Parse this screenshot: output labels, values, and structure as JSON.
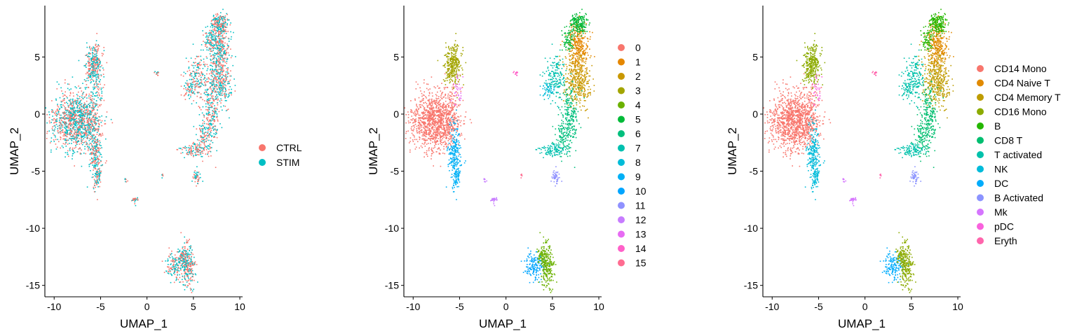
{
  "chart_data": [
    {
      "type": "scatter",
      "xlabel": "UMAP_1",
      "ylabel": "UMAP_2",
      "xlim": [
        -11,
        10.3
      ],
      "ylim": [
        -16,
        9.5
      ],
      "xticks": [
        -10,
        -5,
        0,
        5,
        10
      ],
      "yticks": [
        -15,
        -10,
        -5,
        0,
        5
      ],
      "xtick_labels": [
        "-10",
        "-5",
        "0",
        "5",
        "10"
      ],
      "ytick_labels": [
        "-15",
        "-10",
        "-5",
        "0",
        "5"
      ],
      "grid": false,
      "legend_placement": "right",
      "color_mode": "stim",
      "legend": [
        {
          "label": "CTRL",
          "color": "#F8766D"
        },
        {
          "label": "STIM",
          "color": "#00BFC4"
        }
      ]
    },
    {
      "type": "scatter",
      "xlabel": "UMAP_1",
      "ylabel": "UMAP_2",
      "xlim": [
        -11,
        10.3
      ],
      "ylim": [
        -16,
        9.5
      ],
      "xticks": [
        -10,
        -5,
        0,
        5,
        10
      ],
      "yticks": [
        -15,
        -10,
        -5,
        0,
        5
      ],
      "xtick_labels": [
        "-10",
        "-5",
        "0",
        "5",
        "10"
      ],
      "ytick_labels": [
        "-15",
        "-10",
        "-5",
        "0",
        "5"
      ],
      "grid": false,
      "legend_placement": "right",
      "color_mode": "cluster",
      "legend": [
        {
          "label": "0",
          "color": "#F8766D"
        },
        {
          "label": "1",
          "color": "#E58700"
        },
        {
          "label": "2",
          "color": "#C99800"
        },
        {
          "label": "3",
          "color": "#A3A500"
        },
        {
          "label": "4",
          "color": "#6BB100"
        },
        {
          "label": "5",
          "color": "#00BA38"
        },
        {
          "label": "6",
          "color": "#00BF7D"
        },
        {
          "label": "7",
          "color": "#00C0AF"
        },
        {
          "label": "8",
          "color": "#00BCD8"
        },
        {
          "label": "9",
          "color": "#00B0F6"
        },
        {
          "label": "10",
          "color": "#00A5FF"
        },
        {
          "label": "11",
          "color": "#8F91FF"
        },
        {
          "label": "12",
          "color": "#C77CFF"
        },
        {
          "label": "13",
          "color": "#E76BF3"
        },
        {
          "label": "14",
          "color": "#FF61C9"
        },
        {
          "label": "15",
          "color": "#FF6C91"
        }
      ]
    },
    {
      "type": "scatter",
      "xlabel": "UMAP_1",
      "ylabel": "UMAP_2",
      "xlim": [
        -11,
        10.3
      ],
      "ylim": [
        -16,
        9.5
      ],
      "xticks": [
        -10,
        -5,
        0,
        5,
        10
      ],
      "yticks": [
        -15,
        -10,
        -5,
        0,
        5
      ],
      "xtick_labels": [
        "-10",
        "-5",
        "0",
        "5",
        "10"
      ],
      "ytick_labels": [
        "-15",
        "-10",
        "-5",
        "0",
        "5"
      ],
      "grid": false,
      "legend_placement": "right",
      "color_mode": "celltype",
      "legend": [
        {
          "label": "CD14 Mono",
          "color": "#F8766D"
        },
        {
          "label": "CD4 Naive T",
          "color": "#E18A00"
        },
        {
          "label": "CD4 Memory T",
          "color": "#BE9C00"
        },
        {
          "label": "CD16 Mono",
          "color": "#8CAB00"
        },
        {
          "label": "B",
          "color": "#24B700"
        },
        {
          "label": "CD8 T",
          "color": "#00BE70"
        },
        {
          "label": "T activated",
          "color": "#00C1AB"
        },
        {
          "label": "NK",
          "color": "#00BBDA"
        },
        {
          "label": "DC",
          "color": "#00ACFC"
        },
        {
          "label": "B Activated",
          "color": "#8B93FF"
        },
        {
          "label": "Mk",
          "color": "#D575FE"
        },
        {
          "label": "pDC",
          "color": "#F962DD"
        },
        {
          "label": "Eryth",
          "color": "#FF65AC"
        }
      ]
    }
  ]
}
